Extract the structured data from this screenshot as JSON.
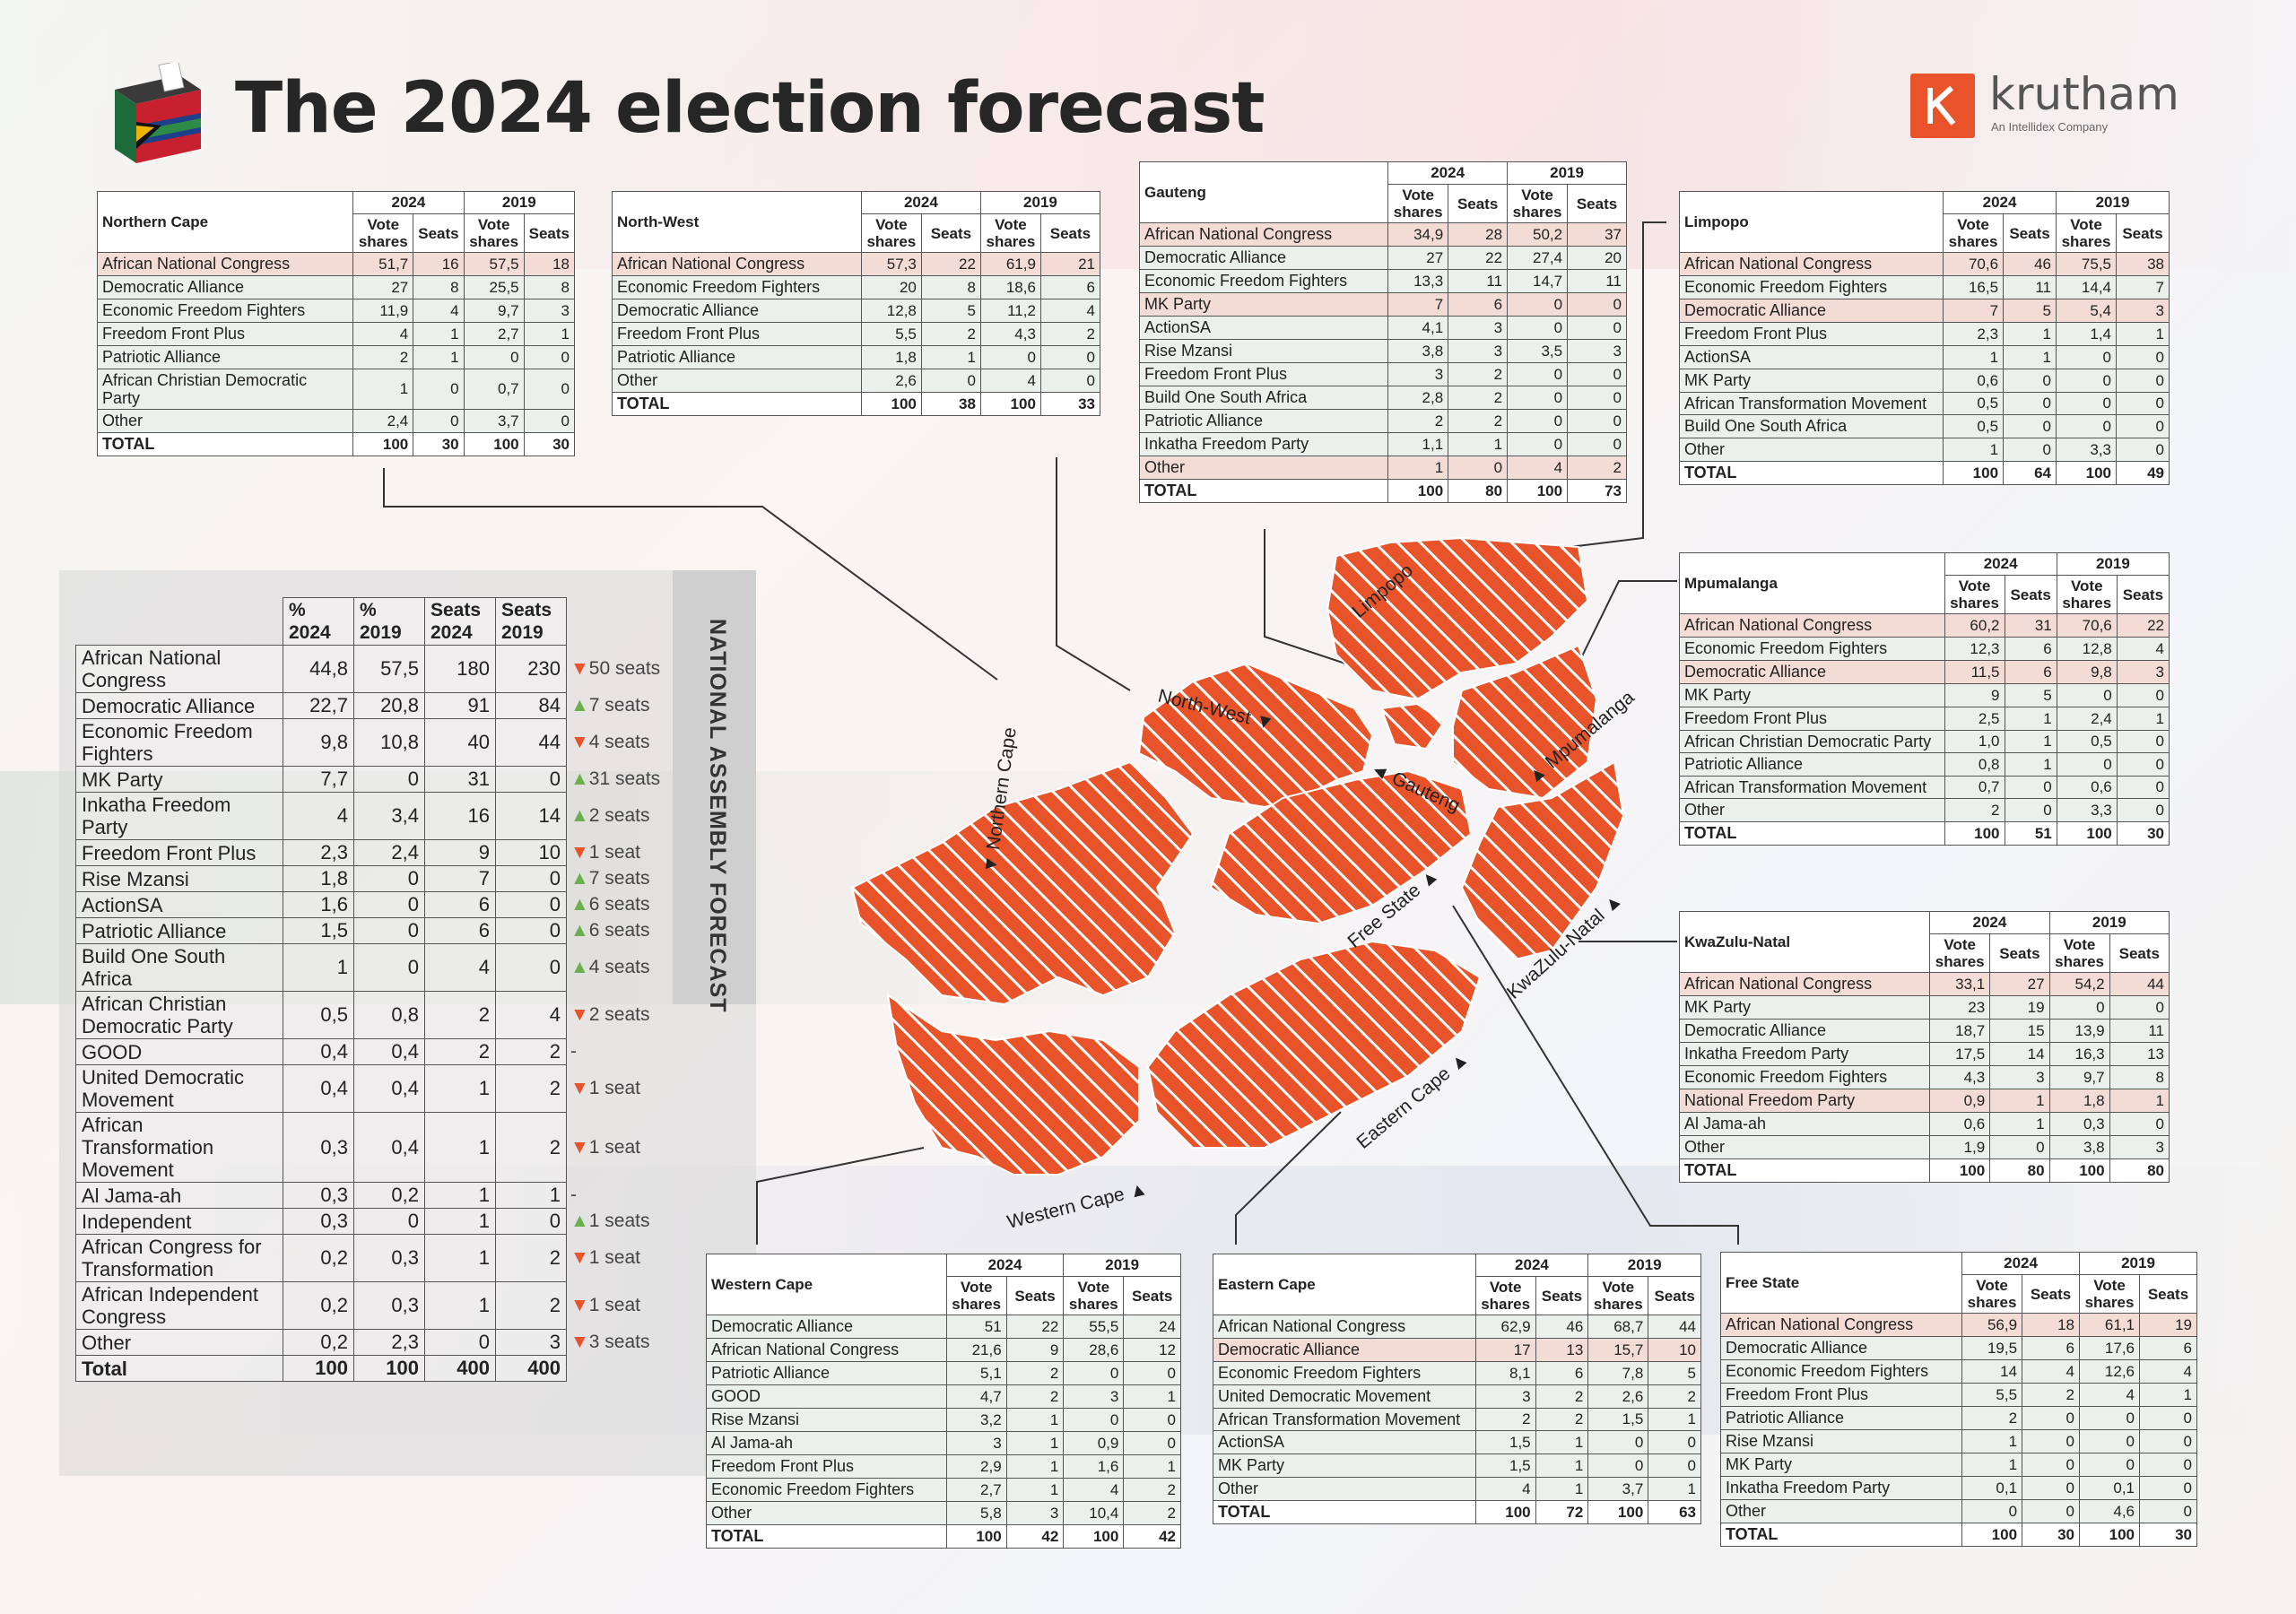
{
  "title": "The 2024 election forecast",
  "brand": {
    "name": "krutham",
    "tagline": "An Intellidex Company",
    "color": "#e8532a"
  },
  "colors": {
    "anc_highlight": "#f4dcd6",
    "map_fill": "#e8532a",
    "up": "#6ab04c",
    "down": "#e8532a"
  },
  "header_years": {
    "y2024": "2024",
    "y2019": "2019"
  },
  "col_labels": {
    "vote_shares": "Vote shares",
    "seats": "Seats"
  },
  "national": {
    "label": "NATIONAL ASSEMBLY FORECAST",
    "headers": [
      "% 2024",
      "% 2019",
      "Seats 2024",
      "Seats 2019"
    ],
    "rows": [
      {
        "party": "African National Congress",
        "p24": "44,8",
        "p19": "57,5",
        "s24": "180",
        "s19": "230",
        "dir": "down",
        "change": "50 seats"
      },
      {
        "party": "Democratic Alliance",
        "p24": "22,7",
        "p19": "20,8",
        "s24": "91",
        "s19": "84",
        "dir": "up",
        "change": "7 seats"
      },
      {
        "party": "Economic Freedom Fighters",
        "p24": "9,8",
        "p19": "10,8",
        "s24": "40",
        "s19": "44",
        "dir": "down",
        "change": "4 seats"
      },
      {
        "party": "MK Party",
        "p24": "7,7",
        "p19": "0",
        "s24": "31",
        "s19": "0",
        "dir": "up",
        "change": "31 seats"
      },
      {
        "party": "Inkatha Freedom Party",
        "p24": "4",
        "p19": "3,4",
        "s24": "16",
        "s19": "14",
        "dir": "up",
        "change": "2 seats"
      },
      {
        "party": "Freedom Front Plus",
        "p24": "2,3",
        "p19": "2,4",
        "s24": "9",
        "s19": "10",
        "dir": "down",
        "change": "1 seat"
      },
      {
        "party": "Rise Mzansi",
        "p24": "1,8",
        "p19": "0",
        "s24": "7",
        "s19": "0",
        "dir": "up",
        "change": "7 seats"
      },
      {
        "party": "ActionSA",
        "p24": "1,6",
        "p19": "0",
        "s24": "6",
        "s19": "0",
        "dir": "up",
        "change": "6 seats"
      },
      {
        "party": "Patriotic Alliance",
        "p24": "1,5",
        "p19": "0",
        "s24": "6",
        "s19": "0",
        "dir": "up",
        "change": "6 seats"
      },
      {
        "party": "Build One South Africa",
        "p24": "1",
        "p19": "0",
        "s24": "4",
        "s19": "0",
        "dir": "up",
        "change": "4 seats"
      },
      {
        "party": "African Christian Democratic Party",
        "p24": "0,5",
        "p19": "0,8",
        "s24": "2",
        "s19": "4",
        "dir": "down",
        "change": "2 seats"
      },
      {
        "party": "GOOD",
        "p24": "0,4",
        "p19": "0,4",
        "s24": "2",
        "s19": "2",
        "dir": "none",
        "change": "-"
      },
      {
        "party": "United Democratic Movement",
        "p24": "0,4",
        "p19": "0,4",
        "s24": "1",
        "s19": "2",
        "dir": "down",
        "change": "1 seat"
      },
      {
        "party": "African Transformation Movement",
        "p24": "0,3",
        "p19": "0,4",
        "s24": "1",
        "s19": "2",
        "dir": "down",
        "change": "1 seat"
      },
      {
        "party": "Al Jama-ah",
        "p24": "0,3",
        "p19": "0,2",
        "s24": "1",
        "s19": "1",
        "dir": "none",
        "change": "-"
      },
      {
        "party": "Independent",
        "p24": "0,3",
        "p19": "0",
        "s24": "1",
        "s19": "0",
        "dir": "up",
        "change": "1 seats"
      },
      {
        "party": "African Congress for Transformation",
        "p24": "0,2",
        "p19": "0,3",
        "s24": "1",
        "s19": "2",
        "dir": "down",
        "change": "1 seat"
      },
      {
        "party": "African Independent Congress",
        "p24": "0,2",
        "p19": "0,3",
        "s24": "1",
        "s19": "2",
        "dir": "down",
        "change": "1 seat"
      },
      {
        "party": "Other",
        "p24": "0,2",
        "p19": "2,3",
        "s24": "0",
        "s19": "3",
        "dir": "down",
        "change": "3 seats"
      },
      {
        "party": "Total",
        "p24": "100",
        "p19": "100",
        "s24": "400",
        "s19": "400",
        "dir": "total",
        "change": ""
      }
    ]
  },
  "provinces": [
    {
      "id": "northern-cape",
      "name": "Northern Cape",
      "rows": [
        [
          "African National Congress",
          "51,7",
          "16",
          "57,5",
          "18",
          "hl"
        ],
        [
          "Democratic Alliance",
          "27",
          "8",
          "25,5",
          "8",
          "alt"
        ],
        [
          "Economic Freedom Fighters",
          "11,9",
          "4",
          "9,7",
          "3",
          "alt"
        ],
        [
          "Freedom Front Plus",
          "4",
          "1",
          "2,7",
          "1",
          "alt"
        ],
        [
          "Patriotic Alliance",
          "2",
          "1",
          "0",
          "0",
          "alt"
        ],
        [
          "African Christian Democratic Party",
          "1",
          "0",
          "0,7",
          "0",
          "alt"
        ],
        [
          "Other",
          "2,4",
          "0",
          "3,7",
          "0",
          "alt"
        ],
        [
          "TOTAL",
          "100",
          "30",
          "100",
          "30",
          "tot"
        ]
      ]
    },
    {
      "id": "north-west",
      "name": "North-West",
      "rows": [
        [
          "African National Congress",
          "57,3",
          "22",
          "61,9",
          "21",
          "hl"
        ],
        [
          "Economic Freedom Fighters",
          "20",
          "8",
          "18,6",
          "6",
          "alt"
        ],
        [
          "Democratic Alliance",
          "12,8",
          "5",
          "11,2",
          "4",
          "alt"
        ],
        [
          "Freedom Front Plus",
          "5,5",
          "2",
          "4,3",
          "2",
          "alt"
        ],
        [
          "Patriotic Alliance",
          "1,8",
          "1",
          "0",
          "0",
          "alt"
        ],
        [
          "Other",
          "2,6",
          "0",
          "4",
          "0",
          "alt"
        ],
        [
          "TOTAL",
          "100",
          "38",
          "100",
          "33",
          "tot"
        ]
      ]
    },
    {
      "id": "gauteng",
      "name": "Gauteng",
      "rows": [
        [
          "African National Congress",
          "34,9",
          "28",
          "50,2",
          "37",
          "hl"
        ],
        [
          "Democratic Alliance",
          "27",
          "22",
          "27,4",
          "20",
          "alt"
        ],
        [
          "Economic Freedom Fighters",
          "13,3",
          "11",
          "14,7",
          "11",
          "alt"
        ],
        [
          "MK Party",
          "7",
          "6",
          "0",
          "0",
          "hl"
        ],
        [
          "ActionSA",
          "4,1",
          "3",
          "0",
          "0",
          "alt"
        ],
        [
          "Rise Mzansi",
          "3,8",
          "3",
          "3,5",
          "3",
          "alt"
        ],
        [
          "Freedom Front Plus",
          "3",
          "2",
          "0",
          "0",
          "alt"
        ],
        [
          "Build One South Africa",
          "2,8",
          "2",
          "0",
          "0",
          "alt"
        ],
        [
          "Patriotic Alliance",
          "2",
          "2",
          "0",
          "0",
          "alt"
        ],
        [
          "Inkatha Freedom Party",
          "1,1",
          "1",
          "0",
          "0",
          "alt"
        ],
        [
          "Other",
          "1",
          "0",
          "4",
          "2",
          "hl"
        ],
        [
          "TOTAL",
          "100",
          "80",
          "100",
          "73",
          "tot"
        ]
      ]
    },
    {
      "id": "limpopo",
      "name": "Limpopo",
      "rows": [
        [
          "African National Congress",
          "70,6",
          "46",
          "75,5",
          "38",
          "hl"
        ],
        [
          "Economic Freedom Fighters",
          "16,5",
          "11",
          "14,4",
          "7",
          "alt"
        ],
        [
          "Democratic Alliance",
          "7",
          "5",
          "5,4",
          "3",
          "hl"
        ],
        [
          "Freedom Front Plus",
          "2,3",
          "1",
          "1,4",
          "1",
          "alt"
        ],
        [
          "ActionSA",
          "1",
          "1",
          "0",
          "0",
          "alt"
        ],
        [
          "MK Party",
          "0,6",
          "0",
          "0",
          "0",
          "alt"
        ],
        [
          "African Transformation Movement",
          "0,5",
          "0",
          "0",
          "0",
          "alt"
        ],
        [
          "Build One South Africa",
          "0,5",
          "0",
          "0",
          "0",
          "alt"
        ],
        [
          "Other",
          "1",
          "0",
          "3,3",
          "0",
          "alt"
        ],
        [
          "TOTAL",
          "100",
          "64",
          "100",
          "49",
          "tot"
        ]
      ]
    },
    {
      "id": "mpumalanga",
      "name": "Mpumalanga",
      "rows": [
        [
          "African National Congress",
          "60,2",
          "31",
          "70,6",
          "22",
          "hl"
        ],
        [
          "Economic Freedom Fighters",
          "12,3",
          "6",
          "12,8",
          "4",
          "alt"
        ],
        [
          "Democratic Alliance",
          "11,5",
          "6",
          "9,8",
          "3",
          "hl"
        ],
        [
          "MK Party",
          "9",
          "5",
          "0",
          "0",
          "alt"
        ],
        [
          "Freedom Front Plus",
          "2,5",
          "1",
          "2,4",
          "1",
          "alt"
        ],
        [
          "African Christian Democratic Party",
          "1,0",
          "1",
          "0,5",
          "0",
          "alt"
        ],
        [
          "Patriotic Alliance",
          "0,8",
          "1",
          "0",
          "0",
          "alt"
        ],
        [
          "African Transformation Movement",
          "0,7",
          "0",
          "0,6",
          "0",
          "alt"
        ],
        [
          "Other",
          "2",
          "0",
          "3,3",
          "0",
          "alt"
        ],
        [
          "TOTAL",
          "100",
          "51",
          "100",
          "30",
          "tot"
        ]
      ]
    },
    {
      "id": "kwazulu-natal",
      "name": "KwaZulu-Natal",
      "rows": [
        [
          "African National Congress",
          "33,1",
          "27",
          "54,2",
          "44",
          "hl"
        ],
        [
          "MK Party",
          "23",
          "19",
          "0",
          "0",
          "alt"
        ],
        [
          "Democratic Alliance",
          "18,7",
          "15",
          "13,9",
          "11",
          "alt"
        ],
        [
          "Inkatha Freedom Party",
          "17,5",
          "14",
          "16,3",
          "13",
          "alt"
        ],
        [
          "Economic Freedom Fighters",
          "4,3",
          "3",
          "9,7",
          "8",
          "alt"
        ],
        [
          "National Freedom Party",
          "0,9",
          "1",
          "1,8",
          "1",
          "hl"
        ],
        [
          "Al Jama-ah",
          "0,6",
          "1",
          "0,3",
          "0",
          "alt"
        ],
        [
          "Other",
          "1,9",
          "0",
          "3,8",
          "3",
          "alt"
        ],
        [
          "TOTAL",
          "100",
          "80",
          "100",
          "80",
          "tot"
        ]
      ]
    },
    {
      "id": "western-cape",
      "name": "Western Cape",
      "rows": [
        [
          "Democratic Alliance",
          "51",
          "22",
          "55,5",
          "24",
          "alt"
        ],
        [
          "African National Congress",
          "21,6",
          "9",
          "28,6",
          "12",
          "alt"
        ],
        [
          "Patriotic Alliance",
          "5,1",
          "2",
          "0",
          "0",
          "alt"
        ],
        [
          "GOOD",
          "4,7",
          "2",
          "3",
          "1",
          "alt"
        ],
        [
          "Rise Mzansi",
          "3,2",
          "1",
          "0",
          "0",
          "alt"
        ],
        [
          "Al Jama-ah",
          "3",
          "1",
          "0,9",
          "0",
          "alt"
        ],
        [
          "Freedom Front Plus",
          "2,9",
          "1",
          "1,6",
          "1",
          "alt"
        ],
        [
          "Economic Freedom Fighters",
          "2,7",
          "1",
          "4",
          "2",
          "alt"
        ],
        [
          "Other",
          "5,8",
          "3",
          "10,4",
          "2",
          "alt"
        ],
        [
          "TOTAL",
          "100",
          "42",
          "100",
          "42",
          "tot"
        ]
      ]
    },
    {
      "id": "eastern-cape",
      "name": "Eastern Cape",
      "rows": [
        [
          "African National Congress",
          "62,9",
          "46",
          "68,7",
          "44",
          "alt"
        ],
        [
          "Democratic Alliance",
          "17",
          "13",
          "15,7",
          "10",
          "hl"
        ],
        [
          "Economic Freedom Fighters",
          "8,1",
          "6",
          "7,8",
          "5",
          "alt"
        ],
        [
          "United Democratic Movement",
          "3",
          "2",
          "2,6",
          "2",
          "alt"
        ],
        [
          "African Transformation Movement",
          "2",
          "2",
          "1,5",
          "1",
          "alt"
        ],
        [
          "ActionSA",
          "1,5",
          "1",
          "0",
          "0",
          "alt"
        ],
        [
          "MK Party",
          "1,5",
          "1",
          "0",
          "0",
          "alt"
        ],
        [
          "Other",
          "4",
          "1",
          "3,7",
          "1",
          "alt"
        ],
        [
          "TOTAL",
          "100",
          "72",
          "100",
          "63",
          "tot"
        ]
      ]
    },
    {
      "id": "free-state",
      "name": "Free State",
      "rows": [
        [
          "African National Congress",
          "56,9",
          "18",
          "61,1",
          "19",
          "hl"
        ],
        [
          "Democratic Alliance",
          "19,5",
          "6",
          "17,6",
          "6",
          "alt"
        ],
        [
          "Economic Freedom Fighters",
          "14",
          "4",
          "12,6",
          "4",
          "alt"
        ],
        [
          "Freedom Front Plus",
          "5,5",
          "2",
          "4",
          "1",
          "alt"
        ],
        [
          "Patriotic Alliance",
          "2",
          "0",
          "0",
          "0",
          "alt"
        ],
        [
          "Rise Mzansi",
          "1",
          "0",
          "0",
          "0",
          "alt"
        ],
        [
          "MK Party",
          "1",
          "0",
          "0",
          "0",
          "alt"
        ],
        [
          "Inkatha Freedom Party",
          "0,1",
          "0",
          "0,1",
          "0",
          "alt"
        ],
        [
          "Other",
          "0",
          "0",
          "4,6",
          "0",
          "alt"
        ],
        [
          "TOTAL",
          "100",
          "30",
          "100",
          "30",
          "tot"
        ]
      ]
    }
  ],
  "map_labels": {
    "limpopo": "Limpopo",
    "north_west": "North-West ▼",
    "northern_cape": "▼ Northern Cape",
    "gauteng": "◄ Gauteng",
    "mpumalanga": "▲ Mpumalanga",
    "free_state": "Free State ▲",
    "kwazulu_natal": "KwaZulu-Natal ▲",
    "eastern_cape": "Eastern Cape ▲",
    "western_cape": "Western Cape ▲"
  }
}
